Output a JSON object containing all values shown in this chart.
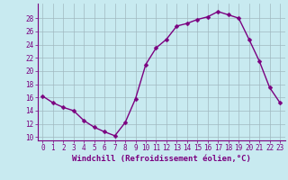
{
  "x": [
    0,
    1,
    2,
    3,
    4,
    5,
    6,
    7,
    8,
    9,
    10,
    11,
    12,
    13,
    14,
    15,
    16,
    17,
    18,
    19,
    20,
    21,
    22,
    23
  ],
  "y": [
    16.2,
    15.2,
    14.5,
    14.0,
    12.5,
    11.5,
    10.8,
    10.2,
    12.2,
    15.8,
    21.0,
    23.5,
    24.8,
    26.8,
    27.2,
    27.8,
    28.2,
    29.0,
    28.5,
    28.0,
    24.8,
    21.5,
    17.5,
    15.2
  ],
  "line_color": "#7b0080",
  "marker": "D",
  "marker_size": 2.5,
  "bg_color": "#c8eaf0",
  "grid_color": "#a0b8c0",
  "xlabel": "Windchill (Refroidissement éolien,°C)",
  "xlim": [
    -0.5,
    23.5
  ],
  "ylim": [
    9.5,
    30.2
  ],
  "yticks": [
    10,
    12,
    14,
    16,
    18,
    20,
    22,
    24,
    26,
    28
  ],
  "xticks": [
    0,
    1,
    2,
    3,
    4,
    5,
    6,
    7,
    8,
    9,
    10,
    11,
    12,
    13,
    14,
    15,
    16,
    17,
    18,
    19,
    20,
    21,
    22,
    23
  ],
  "tick_label_size": 5.5,
  "xlabel_fontsize": 6.5,
  "line_width": 1.0
}
